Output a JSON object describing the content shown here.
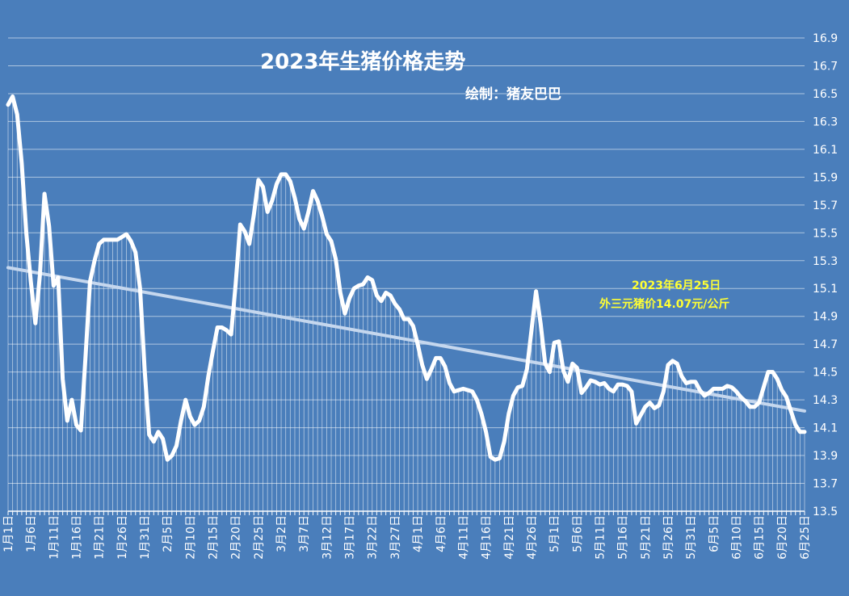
{
  "colors": {
    "background": "#4a7ebb",
    "line": "#ffffff",
    "trendline": "#c5d7ee",
    "annotation": "#ffff33"
  },
  "chart_data": {
    "type": "line",
    "title": "2023年生猪价格走势",
    "subtitle": "绘制：猪友巴巴",
    "annotation": [
      "2023年6月25日",
      "外三元猪价14.07元/公斤"
    ],
    "ylim": [
      13.5,
      16.9
    ],
    "y_ticks": [
      "13.5",
      "13.7",
      "13.9",
      "14.1",
      "14.3",
      "14.5",
      "14.7",
      "14.9",
      "15.1",
      "15.3",
      "15.5",
      "15.7",
      "15.9",
      "16.1",
      "16.3",
      "16.5",
      "16.7",
      "16.9"
    ],
    "grid": true,
    "legend": "none",
    "trendline": {
      "type": "linear",
      "start": 15.25,
      "end": 14.22
    },
    "x_tick_labels": [
      "1月1日",
      "1月6日",
      "1月11日",
      "1月16日",
      "1月21日",
      "1月26日",
      "1月31日",
      "2月5日",
      "2月10日",
      "2月15日",
      "2月20日",
      "2月25日",
      "3月2日",
      "3月7日",
      "3月12日",
      "3月17日",
      "3月22日",
      "3月27日",
      "4月1日",
      "4月6日",
      "4月11日",
      "4月16日",
      "4月21日",
      "4月26日",
      "5月1日",
      "5月6日",
      "5月11日",
      "5月16日",
      "5月21日",
      "5月26日",
      "5月31日",
      "6月5日",
      "6月10日",
      "6月15日",
      "6月20日",
      "6月25日"
    ],
    "series": [
      {
        "values": [
          16.42,
          16.48,
          16.35,
          16.0,
          15.5,
          15.15,
          14.85,
          15.2,
          15.78,
          15.55,
          15.12,
          15.18,
          14.45,
          14.15,
          14.3,
          14.12,
          14.08,
          14.6,
          15.15,
          15.3,
          15.42,
          15.45,
          15.45,
          15.45,
          15.45,
          15.47,
          15.49,
          15.44,
          15.36,
          15.1,
          14.52,
          14.05,
          14.0,
          14.07,
          14.02,
          13.87,
          13.9,
          13.97,
          14.15,
          14.3,
          14.18,
          14.12,
          14.15,
          14.25,
          14.47,
          14.65,
          14.82,
          14.82,
          14.8,
          14.77,
          15.13,
          15.56,
          15.51,
          15.42,
          15.63,
          15.88,
          15.83,
          15.65,
          15.73,
          15.85,
          15.92,
          15.92,
          15.87,
          15.75,
          15.6,
          15.53,
          15.65,
          15.8,
          15.73,
          15.62,
          15.49,
          15.44,
          15.31,
          15.07,
          14.92,
          15.03,
          15.1,
          15.12,
          15.13,
          15.18,
          15.16,
          15.05,
          15.01,
          15.07,
          15.05,
          14.99,
          14.95,
          14.88,
          14.88,
          14.83,
          14.7,
          14.55,
          14.45,
          14.52,
          14.6,
          14.6,
          14.54,
          14.42,
          14.36,
          14.37,
          14.38,
          14.37,
          14.36,
          14.3,
          14.2,
          14.07,
          13.89,
          13.87,
          13.88,
          14.0,
          14.2,
          14.33,
          14.39,
          14.4,
          14.52,
          14.8,
          15.08,
          14.85,
          14.56,
          14.5,
          14.71,
          14.72,
          14.51,
          14.43,
          14.56,
          14.53,
          14.35,
          14.39,
          14.44,
          14.43,
          14.41,
          14.42,
          14.38,
          14.36,
          14.41,
          14.41,
          14.4,
          14.36,
          14.13,
          14.19,
          14.25,
          14.28,
          14.24,
          14.26,
          14.36,
          14.55,
          14.58,
          14.56,
          14.47,
          14.42,
          14.43,
          14.43,
          14.37,
          14.33,
          14.35,
          14.38,
          14.38,
          14.38,
          14.4,
          14.39,
          14.36,
          14.32,
          14.29,
          14.25,
          14.25,
          14.28,
          14.39,
          14.5,
          14.5,
          14.45,
          14.37,
          14.32,
          14.22,
          14.12,
          14.07,
          14.07
        ]
      }
    ]
  }
}
